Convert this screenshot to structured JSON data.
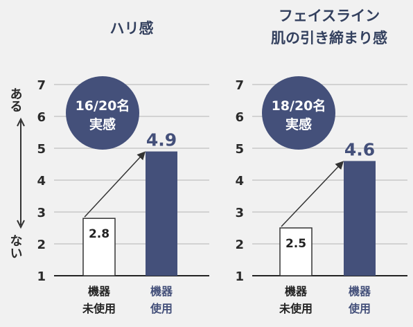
{
  "y_axis": {
    "top_label": "ある",
    "bottom_label": "ない"
  },
  "colors": {
    "accent": "#44507a",
    "badge": "#44507a",
    "grid": "#c8c8c8",
    "bar_outline": "#333333"
  },
  "chart_data": [
    {
      "type": "bar",
      "title": "ハリ感",
      "badge": {
        "line1": "16/20名",
        "line2": "実感"
      },
      "ylim": [
        1,
        7
      ],
      "yticks": [
        1,
        2,
        3,
        4,
        5,
        6,
        7
      ],
      "grid": true,
      "categories": [
        {
          "line1": "機器",
          "line2": "未使用"
        },
        {
          "line1": "機器",
          "line2": "使用"
        }
      ],
      "values": [
        2.8,
        4.9
      ],
      "value_labels": [
        "2.8",
        "4.9"
      ]
    },
    {
      "type": "bar",
      "title": "フェイスライン\n肌の引き締まり感",
      "badge": {
        "line1": "18/20名",
        "line2": "実感"
      },
      "ylim": [
        1,
        7
      ],
      "yticks": [
        1,
        2,
        3,
        4,
        5,
        6,
        7
      ],
      "grid": true,
      "categories": [
        {
          "line1": "機器",
          "line2": "未使用"
        },
        {
          "line1": "機器",
          "line2": "使用"
        }
      ],
      "values": [
        2.5,
        4.6
      ],
      "value_labels": [
        "2.5",
        "4.6"
      ]
    }
  ]
}
